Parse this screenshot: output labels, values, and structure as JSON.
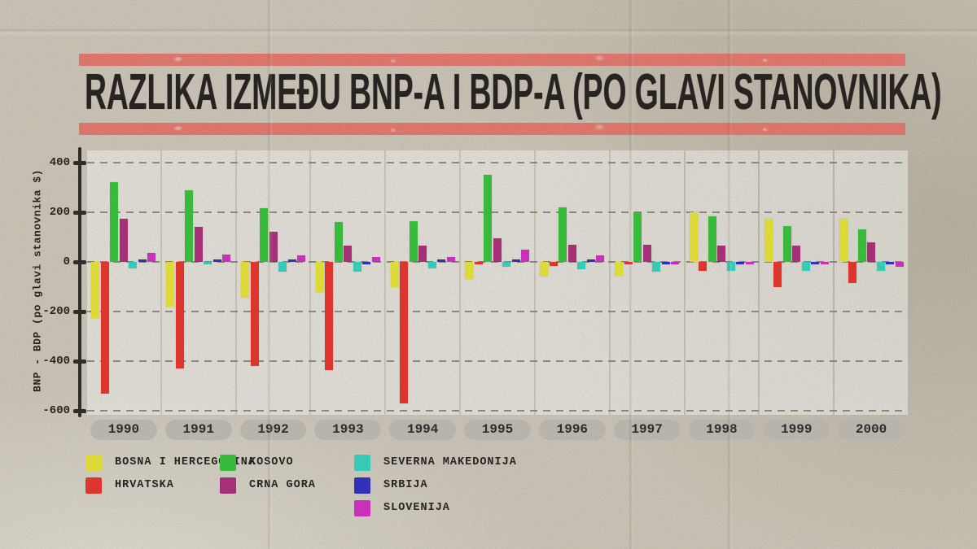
{
  "title": "RAZLIKA IZMEĐU BNP-A I BDP-A (PO GLAVI STANOVNIKA)",
  "colors": {
    "banner": "#F08076",
    "paper": "#D7D1C3",
    "panel_bg": "#ECEAE3",
    "grid": "#8E8B84",
    "axis": "#35312C",
    "text": "#2B2725",
    "year_pill": "#C8C5BD"
  },
  "chart_data": {
    "type": "bar",
    "title": "RAZLIKA IZMEĐU BNP-A I BDP-A (PO GLAVI STANOVNIKA)",
    "xlabel": "",
    "ylabel": "BNP - BDP (po glavi stanovnika $)",
    "categories": [
      "1990",
      "1991",
      "1992",
      "1993",
      "1994",
      "1995",
      "1996",
      "1997",
      "1998",
      "1999",
      "2000"
    ],
    "yticks": [
      400,
      200,
      0,
      -200,
      -400,
      -600
    ],
    "ylim": [
      -620,
      450
    ],
    "grid": "dashed horizontal",
    "legend_position": "bottom-left",
    "series": [
      {
        "name": "BOSNA I HERCEGOVINA",
        "color": "#F2EE3B",
        "values": [
          -225,
          -180,
          -145,
          -120,
          -100,
          -70,
          -60,
          -55,
          200,
          175,
          175
        ]
      },
      {
        "name": "HRVATSKA",
        "color": "#F23B31",
        "values": [
          -530,
          -430,
          -420,
          -435,
          -570,
          -10,
          -15,
          -10,
          -35,
          -100,
          -85
        ]
      },
      {
        "name": "KOSOVO",
        "color": "#3ECC41",
        "values": [
          320,
          290,
          215,
          160,
          165,
          350,
          220,
          200,
          185,
          145,
          130
        ]
      },
      {
        "name": "CRNA GORA",
        "color": "#B53583",
        "values": [
          175,
          140,
          120,
          65,
          65,
          95,
          70,
          70,
          65,
          65,
          80
        ]
      },
      {
        "name": "SEVERNA MAKEDONIJA",
        "color": "#3BDEC9",
        "values": [
          -25,
          -10,
          -40,
          -40,
          -25,
          -20,
          -30,
          -40,
          -35,
          -35,
          -35
        ]
      },
      {
        "name": "SRBIJA",
        "color": "#3A35C9",
        "values": [
          8,
          5,
          10,
          -5,
          5,
          5,
          5,
          -5,
          -5,
          -8,
          -5
        ]
      },
      {
        "name": "SLOVENIJA",
        "color": "#DC35CC",
        "values": [
          35,
          30,
          25,
          20,
          20,
          50,
          25,
          -5,
          -10,
          -8,
          -20
        ]
      }
    ]
  },
  "legend": {
    "column_series_indexes": [
      [
        0,
        1
      ],
      [
        2,
        3
      ],
      [
        4,
        5,
        6
      ]
    ]
  }
}
